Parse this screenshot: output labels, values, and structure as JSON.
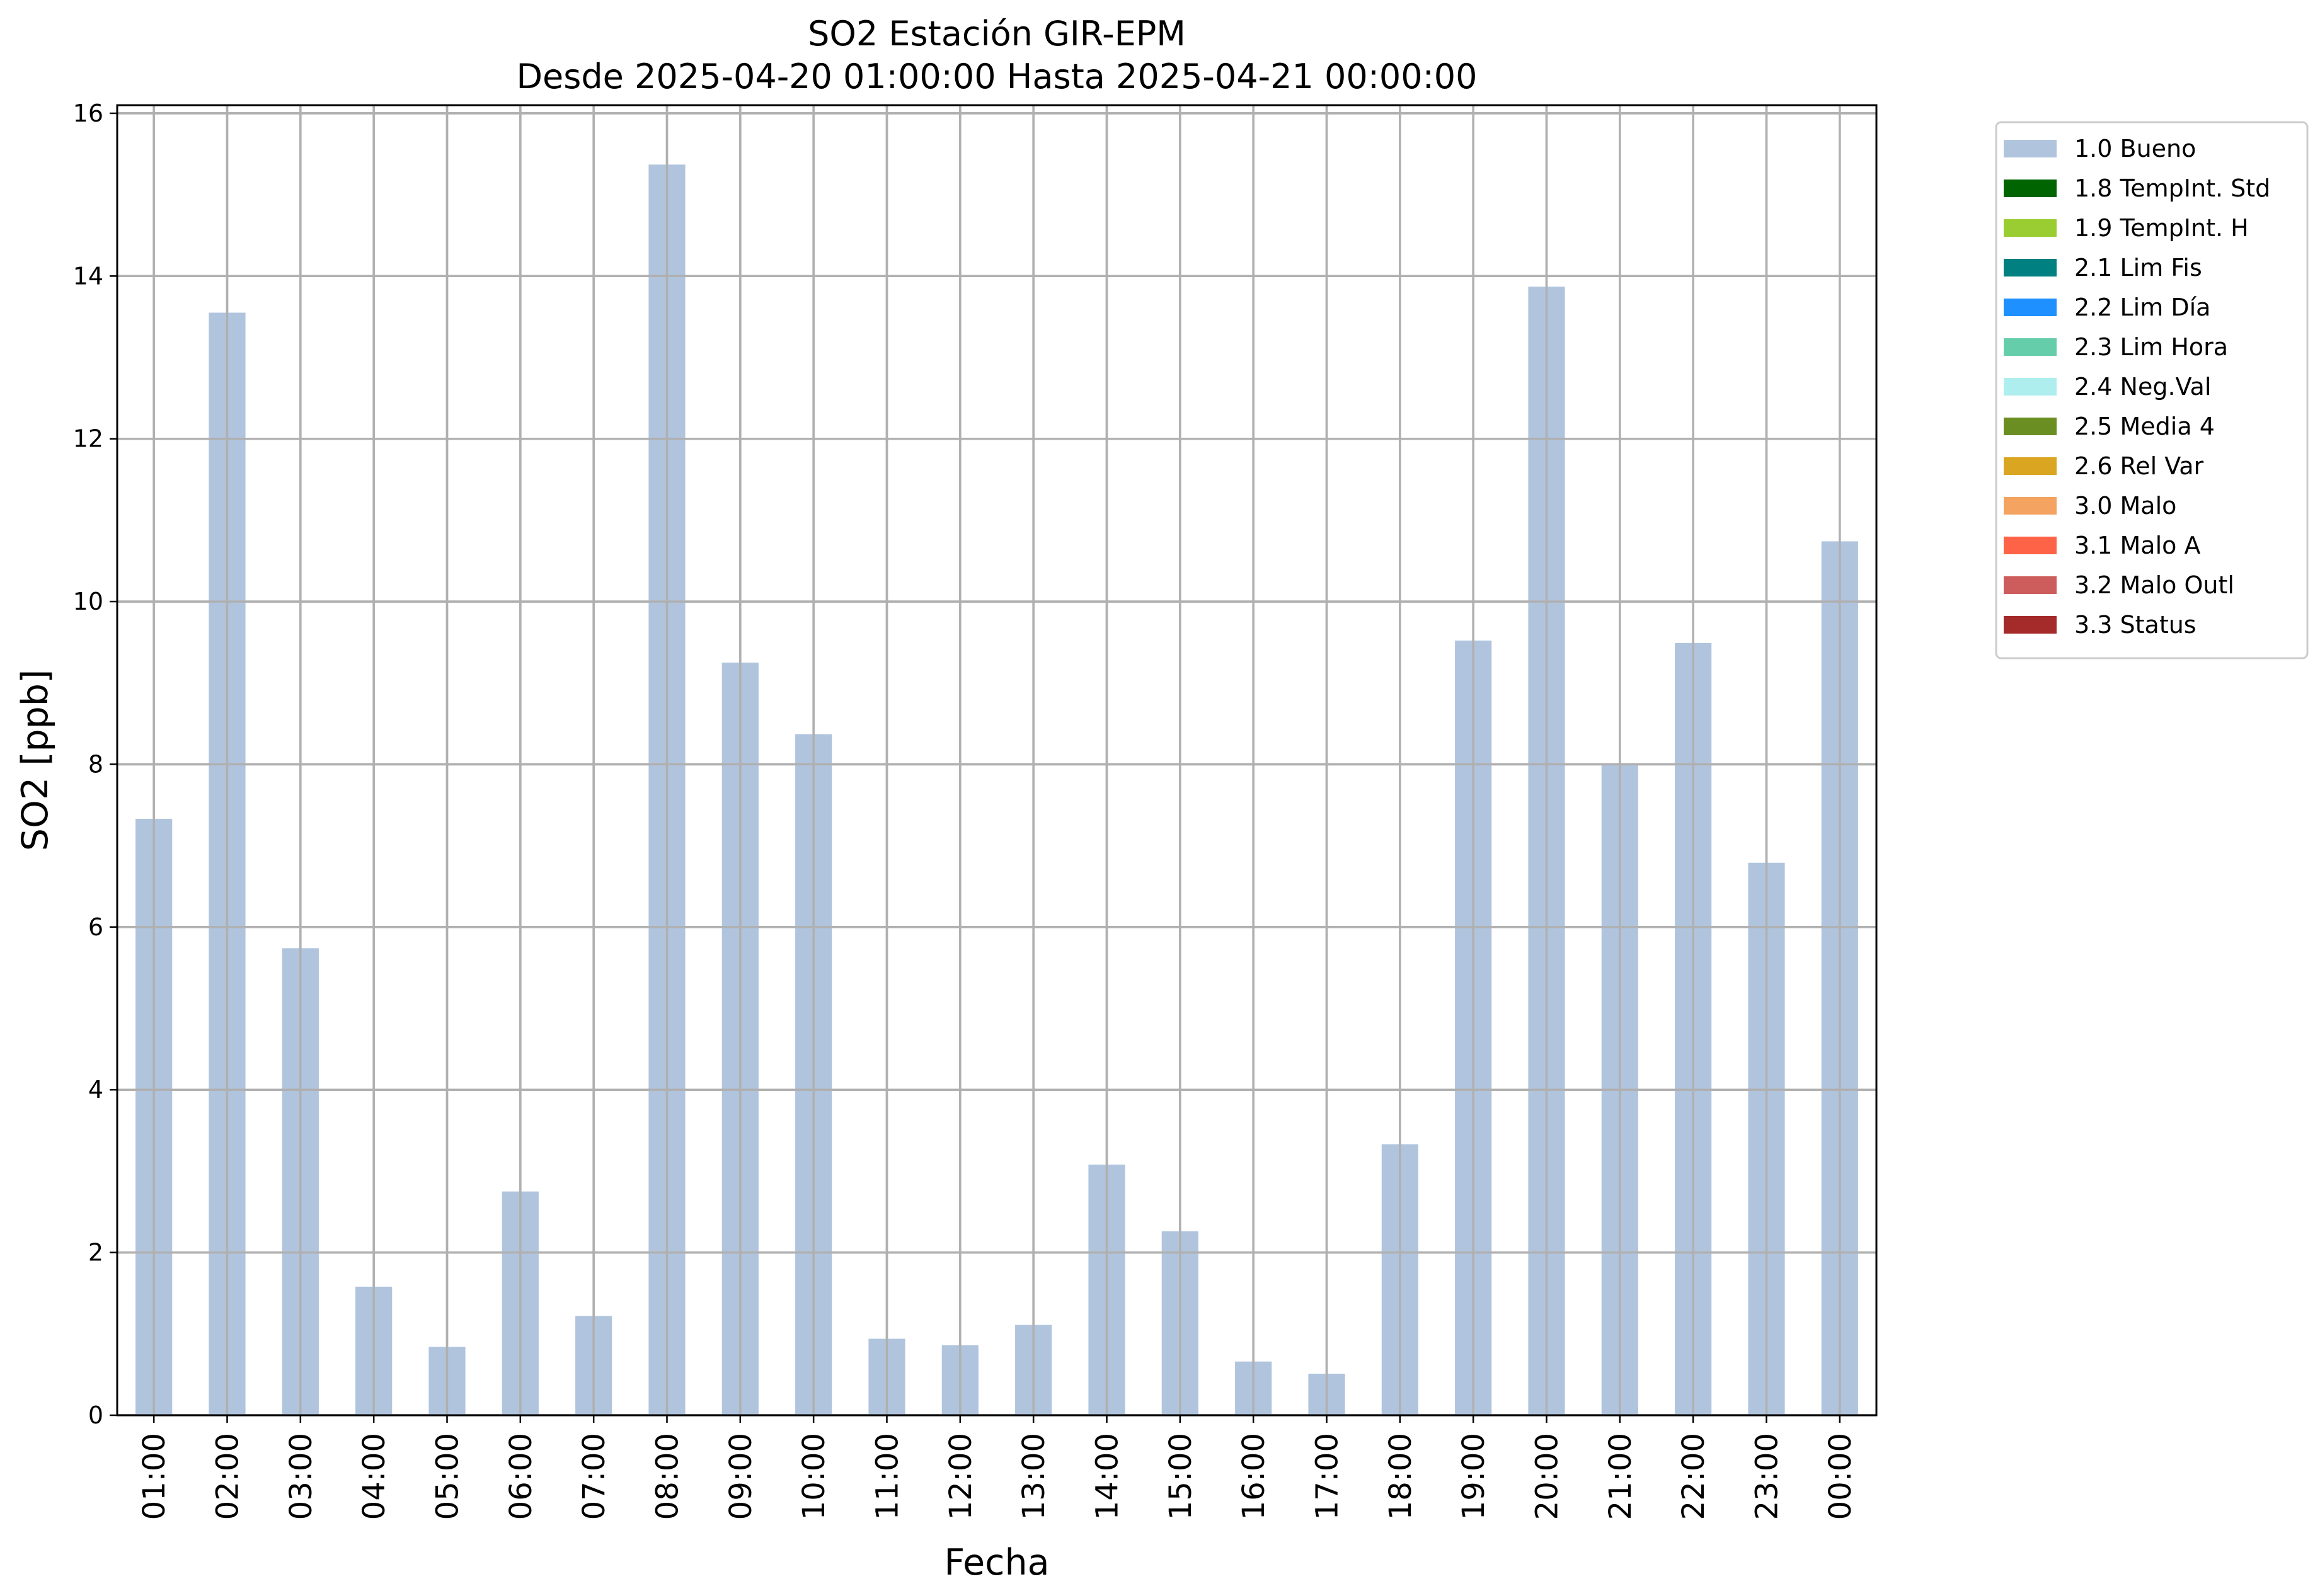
{
  "chart_data": {
    "type": "bar",
    "title": "SO2 Estación GIR-EPM",
    "subtitle": "Desde 2025-04-20 01:00:00 Hasta 2025-04-21 00:00:00",
    "xlabel": "Fecha",
    "ylabel": "SO2 [ppb]",
    "ylim": [
      0,
      16.1
    ],
    "yticks": [
      "0",
      "2",
      "4",
      "6",
      "8",
      "10",
      "12",
      "14",
      "16"
    ],
    "grid": true,
    "legend_position": "outside-top-right",
    "categories": [
      "01:00",
      "02:00",
      "03:00",
      "04:00",
      "05:00",
      "06:00",
      "07:00",
      "08:00",
      "09:00",
      "10:00",
      "11:00",
      "12:00",
      "13:00",
      "14:00",
      "15:00",
      "16:00",
      "17:00",
      "18:00",
      "19:00",
      "20:00",
      "21:00",
      "22:00",
      "23:00",
      "00:00"
    ],
    "series": [
      {
        "name": "1.0 Bueno",
        "color": "#b0c4de",
        "values": [
          7.33,
          13.55,
          5.74,
          1.58,
          0.84,
          2.75,
          1.22,
          15.37,
          9.25,
          8.37,
          0.94,
          0.86,
          1.11,
          3.08,
          2.26,
          0.66,
          0.51,
          3.33,
          9.52,
          13.87,
          8.0,
          9.49,
          6.79,
          10.74
        ]
      }
    ],
    "legend": [
      {
        "label": "1.0 Bueno",
        "color": "#b0c4de"
      },
      {
        "label": "1.8 TempInt. Std",
        "color": "#006400"
      },
      {
        "label": "1.9 TempInt. H",
        "color": "#9acd32"
      },
      {
        "label": "2.1 Lim Fis",
        "color": "#008080"
      },
      {
        "label": "2.2 Lim Día",
        "color": "#1e90ff"
      },
      {
        "label": "2.3 Lim Hora",
        "color": "#66cdaa"
      },
      {
        "label": "2.4 Neg.Val",
        "color": "#afeeee"
      },
      {
        "label": "2.5 Media 4",
        "color": "#6b8e23"
      },
      {
        "label": "2.6 Rel Var",
        "color": "#daa520"
      },
      {
        "label": "3.0 Malo",
        "color": "#f4a460"
      },
      {
        "label": "3.1 Malo A",
        "color": "#ff6347"
      },
      {
        "label": "3.2 Malo Outl",
        "color": "#cd5c5c"
      },
      {
        "label": "3.3 Status",
        "color": "#a52a2a"
      }
    ]
  }
}
